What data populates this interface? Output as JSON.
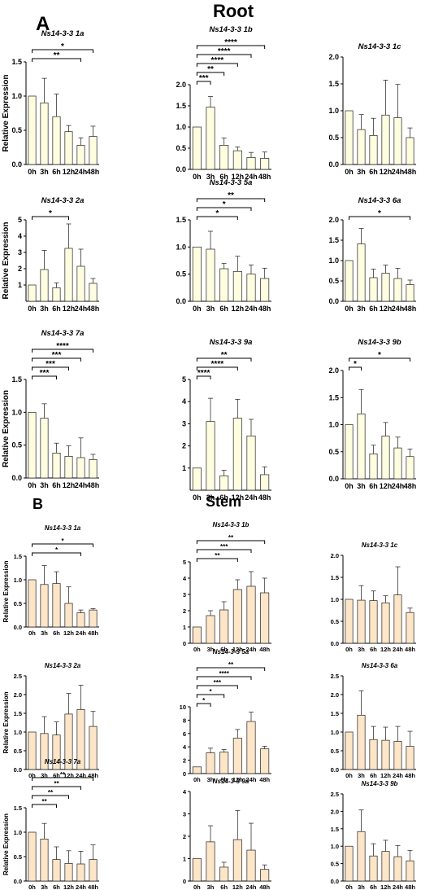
{
  "figure": {
    "sections": [
      {
        "letter": "A",
        "title": "Root"
      },
      {
        "letter": "B",
        "title": "Stem"
      }
    ],
    "colors": {
      "root_fill": "#fffde0",
      "stem_fill": "#fde5c8",
      "stroke": "#000000"
    }
  },
  "chart_data": [
    {
      "type": "bar",
      "section": "Root",
      "title": "Ns14-3-3 1a",
      "ylabel": "Relative Expression",
      "categories": [
        "0h",
        "3h",
        "6h",
        "12h",
        "24h",
        "48h"
      ],
      "values": [
        1.0,
        0.9,
        0.7,
        0.48,
        0.28,
        0.41
      ],
      "errors": [
        0,
        0.36,
        0.33,
        0.09,
        0.11,
        0.15
      ],
      "ylim": [
        0,
        1.5
      ],
      "yticks": [
        0,
        0.5,
        1.0,
        1.5
      ],
      "ytick_labels": [
        "0.0",
        "0.5",
        "1.0",
        "1.5"
      ],
      "significance": [
        {
          "from": 0,
          "to": 5,
          "label": "*"
        },
        {
          "from": 0,
          "to": 4,
          "label": "**"
        }
      ]
    },
    {
      "type": "bar",
      "section": "Root",
      "title": "Ns14-3-3 1b",
      "ylabel": "",
      "categories": [
        "0h",
        "3h",
        "6h",
        "12h",
        "24h",
        "48h"
      ],
      "values": [
        1.0,
        1.47,
        0.57,
        0.44,
        0.28,
        0.26
      ],
      "errors": [
        0,
        0.25,
        0.17,
        0.09,
        0.12,
        0.15
      ],
      "ylim": [
        0,
        2.0
      ],
      "yticks": [
        0,
        0.5,
        1.0,
        1.5,
        2.0
      ],
      "ytick_labels": [
        "0.0",
        "0.5",
        "1.0",
        "1.5",
        "2.0"
      ],
      "significance": [
        {
          "from": 0,
          "to": 5,
          "label": "****"
        },
        {
          "from": 0,
          "to": 4,
          "label": "****"
        },
        {
          "from": 0,
          "to": 3,
          "label": "****"
        },
        {
          "from": 0,
          "to": 2,
          "label": "**"
        },
        {
          "from": 0,
          "to": 1,
          "label": "***"
        }
      ]
    },
    {
      "type": "bar",
      "section": "Root",
      "title": "Ns14-3-3 1c",
      "ylabel": "",
      "categories": [
        "0h",
        "3h",
        "6h",
        "12h",
        "24h",
        "48h"
      ],
      "values": [
        1.0,
        0.65,
        0.54,
        0.92,
        0.87,
        0.5
      ],
      "errors": [
        0,
        0.28,
        0.32,
        0.65,
        0.62,
        0.18
      ],
      "ylim": [
        0,
        2.0
      ],
      "yticks": [
        0,
        0.5,
        1.0,
        1.5,
        2.0
      ],
      "ytick_labels": [
        "0.0",
        "0.5",
        "1.0",
        "1.5",
        "2.0"
      ],
      "significance": []
    },
    {
      "type": "bar",
      "section": "Root",
      "title": "Ns14-3-3 2a",
      "ylabel": "Relative Expression",
      "categories": [
        "0h",
        "3h",
        "6h",
        "12h",
        "24h",
        "48h"
      ],
      "values": [
        1.0,
        1.95,
        0.83,
        3.25,
        2.15,
        1.1
      ],
      "errors": [
        0,
        1.18,
        0.3,
        1.5,
        1.05,
        0.3
      ],
      "ylim": [
        0,
        5
      ],
      "yticks": [
        1,
        2,
        3,
        4,
        5
      ],
      "ytick_labels": [
        "1",
        "2",
        "3",
        "4",
        "5"
      ],
      "significance": [
        {
          "from": 0,
          "to": 3,
          "label": "*"
        }
      ]
    },
    {
      "type": "bar",
      "section": "Root",
      "title": "Ns14-3-3 5a",
      "ylabel": "",
      "categories": [
        "0h",
        "3h",
        "6h",
        "12h",
        "24h",
        "48h"
      ],
      "values": [
        1.0,
        0.96,
        0.6,
        0.55,
        0.5,
        0.42
      ],
      "errors": [
        0,
        0.33,
        0.1,
        0.28,
        0.17,
        0.19
      ],
      "ylim": [
        0,
        1.5
      ],
      "yticks": [
        0,
        0.5,
        1.0,
        1.5
      ],
      "ytick_labels": [
        "0.0",
        "0.5",
        "1.0",
        "1.5"
      ],
      "significance": [
        {
          "from": 0,
          "to": 5,
          "label": "**"
        },
        {
          "from": 0,
          "to": 4,
          "label": "*"
        },
        {
          "from": 0,
          "to": 3,
          "label": "*"
        }
      ]
    },
    {
      "type": "bar",
      "section": "Root",
      "title": "Ns14-3-3 6a",
      "ylabel": "",
      "categories": [
        "0h",
        "3h",
        "6h",
        "12h",
        "24h",
        "48h"
      ],
      "values": [
        1.0,
        1.41,
        0.58,
        0.69,
        0.56,
        0.41
      ],
      "errors": [
        0,
        0.38,
        0.21,
        0.2,
        0.25,
        0.11
      ],
      "ylim": [
        0,
        2.0
      ],
      "yticks": [
        0,
        0.5,
        1.0,
        1.5,
        2.0
      ],
      "ytick_labels": [
        "0.0",
        "0.5",
        "1.0",
        "1.5",
        "2.0"
      ],
      "significance": [
        {
          "from": 0,
          "to": 5,
          "label": "*"
        }
      ]
    },
    {
      "type": "bar",
      "section": "Root",
      "title": "Ns14-3-3 7a",
      "ylabel": "Relative Expression",
      "categories": [
        "0h",
        "3h",
        "6h",
        "12h",
        "24h",
        "48h"
      ],
      "values": [
        1.0,
        0.91,
        0.38,
        0.33,
        0.31,
        0.28
      ],
      "errors": [
        0,
        0.22,
        0.15,
        0.16,
        0.3,
        0.08
      ],
      "ylim": [
        0,
        1.5
      ],
      "yticks": [
        0,
        0.5,
        1.0,
        1.5
      ],
      "ytick_labels": [
        "0.0",
        "0.5",
        "1.0",
        "1.5"
      ],
      "significance": [
        {
          "from": 0,
          "to": 5,
          "label": "****"
        },
        {
          "from": 0,
          "to": 4,
          "label": "***"
        },
        {
          "from": 0,
          "to": 3,
          "label": "***"
        },
        {
          "from": 0,
          "to": 2,
          "label": "***"
        }
      ]
    },
    {
      "type": "bar",
      "section": "Root",
      "title": "Ns14-3-3 9a",
      "ylabel": "",
      "categories": [
        "0h",
        "3h",
        "6h",
        "12h",
        "24h",
        "48h"
      ],
      "values": [
        1.0,
        3.1,
        0.65,
        3.25,
        2.45,
        0.7
      ],
      "errors": [
        0,
        1.05,
        0.25,
        0.85,
        0.75,
        0.35
      ],
      "ylim": [
        0,
        5
      ],
      "yticks": [
        1,
        2,
        3,
        4,
        5
      ],
      "ytick_labels": [
        "1",
        "2",
        "3",
        "4",
        "5"
      ],
      "significance": [
        {
          "from": 0,
          "to": 4,
          "label": "**"
        },
        {
          "from": 0,
          "to": 3,
          "label": "****"
        },
        {
          "from": 0,
          "to": 1,
          "label": "****"
        }
      ]
    },
    {
      "type": "bar",
      "section": "Root",
      "title": "Ns14-3-3 9b",
      "ylabel": "",
      "categories": [
        "0h",
        "3h",
        "6h",
        "12h",
        "24h",
        "48h"
      ],
      "values": [
        1.0,
        1.2,
        0.46,
        0.79,
        0.57,
        0.41
      ],
      "errors": [
        0,
        0.45,
        0.16,
        0.25,
        0.2,
        0.14
      ],
      "ylim": [
        0,
        2.0
      ],
      "yticks": [
        0,
        0.5,
        1.0,
        1.5,
        2.0
      ],
      "ytick_labels": [
        "0.0",
        "0.5",
        "1.0",
        "1.5",
        "2.0"
      ],
      "significance": [
        {
          "from": 0,
          "to": 5,
          "label": "*"
        },
        {
          "from": 0,
          "to": 1,
          "label": "*"
        }
      ]
    },
    {
      "type": "bar",
      "section": "Stem",
      "title": "Ns14-3-3 1a",
      "ylabel": "Relative Expression",
      "categories": [
        "0h",
        "3h",
        "6h",
        "12h",
        "24h",
        "48h"
      ],
      "values": [
        1.0,
        0.9,
        0.92,
        0.5,
        0.3,
        0.36
      ],
      "errors": [
        0,
        0.4,
        0.25,
        0.35,
        0.06,
        0.03
      ],
      "ylim": [
        0,
        1.5
      ],
      "yticks": [
        0,
        0.5,
        1.0,
        1.5
      ],
      "ytick_labels": [
        "0.0",
        "0.5",
        "1.0",
        "1.5"
      ],
      "significance": [
        {
          "from": 0,
          "to": 5,
          "label": "*"
        },
        {
          "from": 0,
          "to": 4,
          "label": "*"
        }
      ]
    },
    {
      "type": "bar",
      "section": "Stem",
      "title": "Ns14-3-3 1b",
      "ylabel": "",
      "categories": [
        "0h",
        "3h",
        "6h",
        "12h",
        "24h",
        "48h"
      ],
      "values": [
        1.0,
        1.7,
        2.05,
        3.3,
        3.5,
        3.1
      ],
      "errors": [
        0,
        0.3,
        0.5,
        0.6,
        0.9,
        0.9
      ],
      "ylim": [
        0,
        5
      ],
      "yticks": [
        0,
        1,
        2,
        3,
        4,
        5
      ],
      "ytick_labels": [
        "0",
        "1",
        "2",
        "3",
        "4",
        "5"
      ],
      "significance": [
        {
          "from": 0,
          "to": 5,
          "label": "**"
        },
        {
          "from": 0,
          "to": 4,
          "label": "***"
        },
        {
          "from": 0,
          "to": 3,
          "label": "**"
        }
      ]
    },
    {
      "type": "bar",
      "section": "Stem",
      "title": "Ns14-3-3 1c",
      "ylabel": "",
      "categories": [
        "0h",
        "3h",
        "6h",
        "12h",
        "24h",
        "48h"
      ],
      "values": [
        1.0,
        0.98,
        0.97,
        0.92,
        1.1,
        0.7
      ],
      "errors": [
        0,
        0.33,
        0.22,
        0.16,
        0.64,
        0.1
      ],
      "ylim": [
        0,
        2.0
      ],
      "yticks": [
        0,
        0.5,
        1.0,
        1.5,
        2.0
      ],
      "ytick_labels": [
        "0.0",
        "0.5",
        "1.0",
        "1.5",
        "2.0"
      ],
      "significance": []
    },
    {
      "type": "bar",
      "section": "Stem",
      "title": "Ns14-3-3 2a",
      "ylabel": "Relative Expression",
      "categories": [
        "0h",
        "3h",
        "6h",
        "12h",
        "24h",
        "48h"
      ],
      "values": [
        1.0,
        0.96,
        0.92,
        1.48,
        1.6,
        1.15
      ],
      "errors": [
        0,
        0.45,
        0.35,
        0.55,
        0.65,
        0.4
      ],
      "ylim": [
        0,
        2.5
      ],
      "yticks": [
        0,
        0.5,
        1.0,
        1.5,
        2.0,
        2.5
      ],
      "ytick_labels": [
        "0.0",
        "0.5",
        "1.0",
        "1.5",
        "2.0",
        "2.5"
      ],
      "significance": []
    },
    {
      "type": "bar",
      "section": "Stem",
      "title": "Ns14-3-3 5a",
      "ylabel": "",
      "categories": [
        "0h",
        "3h",
        "6h",
        "12h",
        "24h",
        "48h"
      ],
      "values": [
        1.0,
        3.1,
        3.2,
        5.3,
        7.8,
        3.7
      ],
      "errors": [
        0,
        0.7,
        0.4,
        1.3,
        1.4,
        0.4
      ],
      "ylim": [
        0,
        10
      ],
      "yticks": [
        0,
        2,
        4,
        6,
        8,
        10
      ],
      "ytick_labels": [
        "0",
        "2",
        "4",
        "6",
        "8",
        "10"
      ],
      "significance": [
        {
          "from": 0,
          "to": 5,
          "label": "**"
        },
        {
          "from": 0,
          "to": 4,
          "label": "****"
        },
        {
          "from": 0,
          "to": 3,
          "label": "***"
        },
        {
          "from": 0,
          "to": 2,
          "label": "*"
        },
        {
          "from": 0,
          "to": 1,
          "label": "*"
        }
      ]
    },
    {
      "type": "bar",
      "section": "Stem",
      "title": "Ns14-3-3 6a",
      "ylabel": "",
      "categories": [
        "0h",
        "3h",
        "6h",
        "12h",
        "24h",
        "48h"
      ],
      "values": [
        1.0,
        1.45,
        0.8,
        0.78,
        0.75,
        0.62
      ],
      "errors": [
        0,
        0.65,
        0.35,
        0.35,
        0.4,
        0.4
      ],
      "ylim": [
        0,
        2.5
      ],
      "yticks": [
        0,
        0.5,
        1.0,
        1.5,
        2.0,
        2.5
      ],
      "ytick_labels": [
        "0.0",
        "0.5",
        "1.0",
        "1.5",
        "2.0",
        "2.5"
      ],
      "significance": []
    },
    {
      "type": "bar",
      "section": "Stem",
      "title": "Ns14-3-3 7a",
      "ylabel": "Relative Expression",
      "categories": [
        "0h",
        "3h",
        "6h",
        "12h",
        "24h",
        "48h"
      ],
      "values": [
        1.0,
        0.86,
        0.44,
        0.36,
        0.35,
        0.44
      ],
      "errors": [
        0,
        0.32,
        0.26,
        0.26,
        0.26,
        0.3
      ],
      "ylim": [
        0,
        1.5
      ],
      "yticks": [
        0,
        0.5,
        1.0,
        1.5
      ],
      "ytick_labels": [
        "0.0",
        "0.5",
        "1.0",
        "1.5"
      ],
      "significance": [
        {
          "from": 0,
          "to": 5,
          "label": "**"
        },
        {
          "from": 0,
          "to": 4,
          "label": "**"
        },
        {
          "from": 0,
          "to": 3,
          "label": "**"
        },
        {
          "from": 0,
          "to": 2,
          "label": "**"
        }
      ]
    },
    {
      "type": "bar",
      "section": "Stem",
      "title": "Ns14-3-3 9a",
      "ylabel": "",
      "categories": [
        "0h",
        "3h",
        "6h",
        "12h",
        "24h",
        "48h"
      ],
      "values": [
        1.0,
        1.75,
        0.62,
        1.85,
        1.38,
        0.52
      ],
      "errors": [
        0,
        0.72,
        0.22,
        1.3,
        1.2,
        0.2
      ],
      "ylim": [
        0,
        4
      ],
      "yticks": [
        0,
        1,
        2,
        3,
        4
      ],
      "ytick_labels": [
        "0",
        "1",
        "2",
        "3",
        "4"
      ],
      "significance": []
    },
    {
      "type": "bar",
      "section": "Stem",
      "title": "Ns14-3-3 9b",
      "ylabel": "",
      "categories": [
        "0h",
        "3h",
        "6h",
        "12h",
        "24h",
        "48h"
      ],
      "values": [
        1.0,
        1.42,
        0.72,
        0.85,
        0.7,
        0.58
      ],
      "errors": [
        0,
        0.62,
        0.35,
        0.32,
        0.32,
        0.3
      ],
      "ylim": [
        0,
        2.5
      ],
      "yticks": [
        0,
        0.5,
        1.0,
        1.5,
        2.0,
        2.5
      ],
      "ytick_labels": [
        "0.0",
        "0.5",
        "1.0",
        "1.5",
        "2.0",
        "2.5"
      ],
      "significance": []
    }
  ]
}
